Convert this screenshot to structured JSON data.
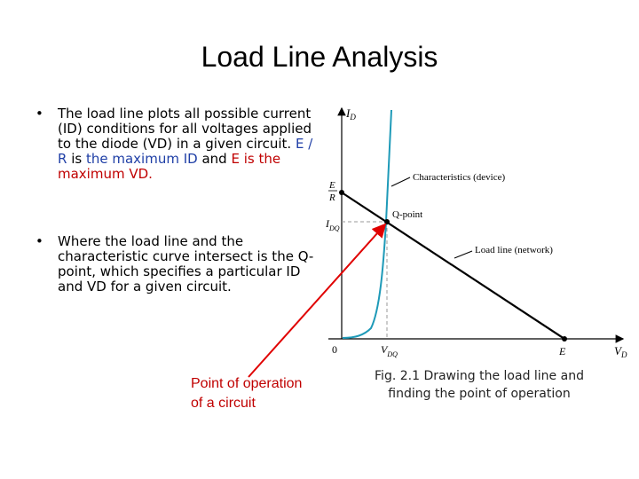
{
  "title": "Load Line Analysis",
  "bullets": [
    {
      "segments": [
        {
          "text": "The load line plots all possible current (ID) conditions for all voltages applied to the diode (VD) in a given circuit. ",
          "color": "black"
        },
        {
          "text": "E / R",
          "color": "blue"
        },
        {
          "text": " is ",
          "color": "black"
        },
        {
          "text": "the maximum ID",
          "color": "blue"
        },
        {
          "text": " and ",
          "color": "black"
        },
        {
          "text": "E is the maximum VD.",
          "color": "red"
        }
      ]
    },
    {
      "segments": [
        {
          "text": "Where the load line and the characteristic curve intersect is the Q-point, which specifies a particular ID and VD for a given circuit.",
          "color": "black"
        }
      ]
    }
  ],
  "annotation": "Point of operation of a circuit",
  "caption": "Fig. 2.1 Drawing the load line and finding the point of operation",
  "figure": {
    "y_axis": {
      "main": "I",
      "sub": "D"
    },
    "x_axis": {
      "main": "V",
      "sub": "D"
    },
    "origin": "0",
    "e_over_r": {
      "num": "E",
      "den": "R"
    },
    "idq": {
      "main": "I",
      "sub": "DQ"
    },
    "vdq": {
      "main": "V",
      "sub": "DQ"
    },
    "e": "E",
    "q_point": "Q-point",
    "characteristics": "Characteristics (device)",
    "load_line": "Load line (network)"
  }
}
